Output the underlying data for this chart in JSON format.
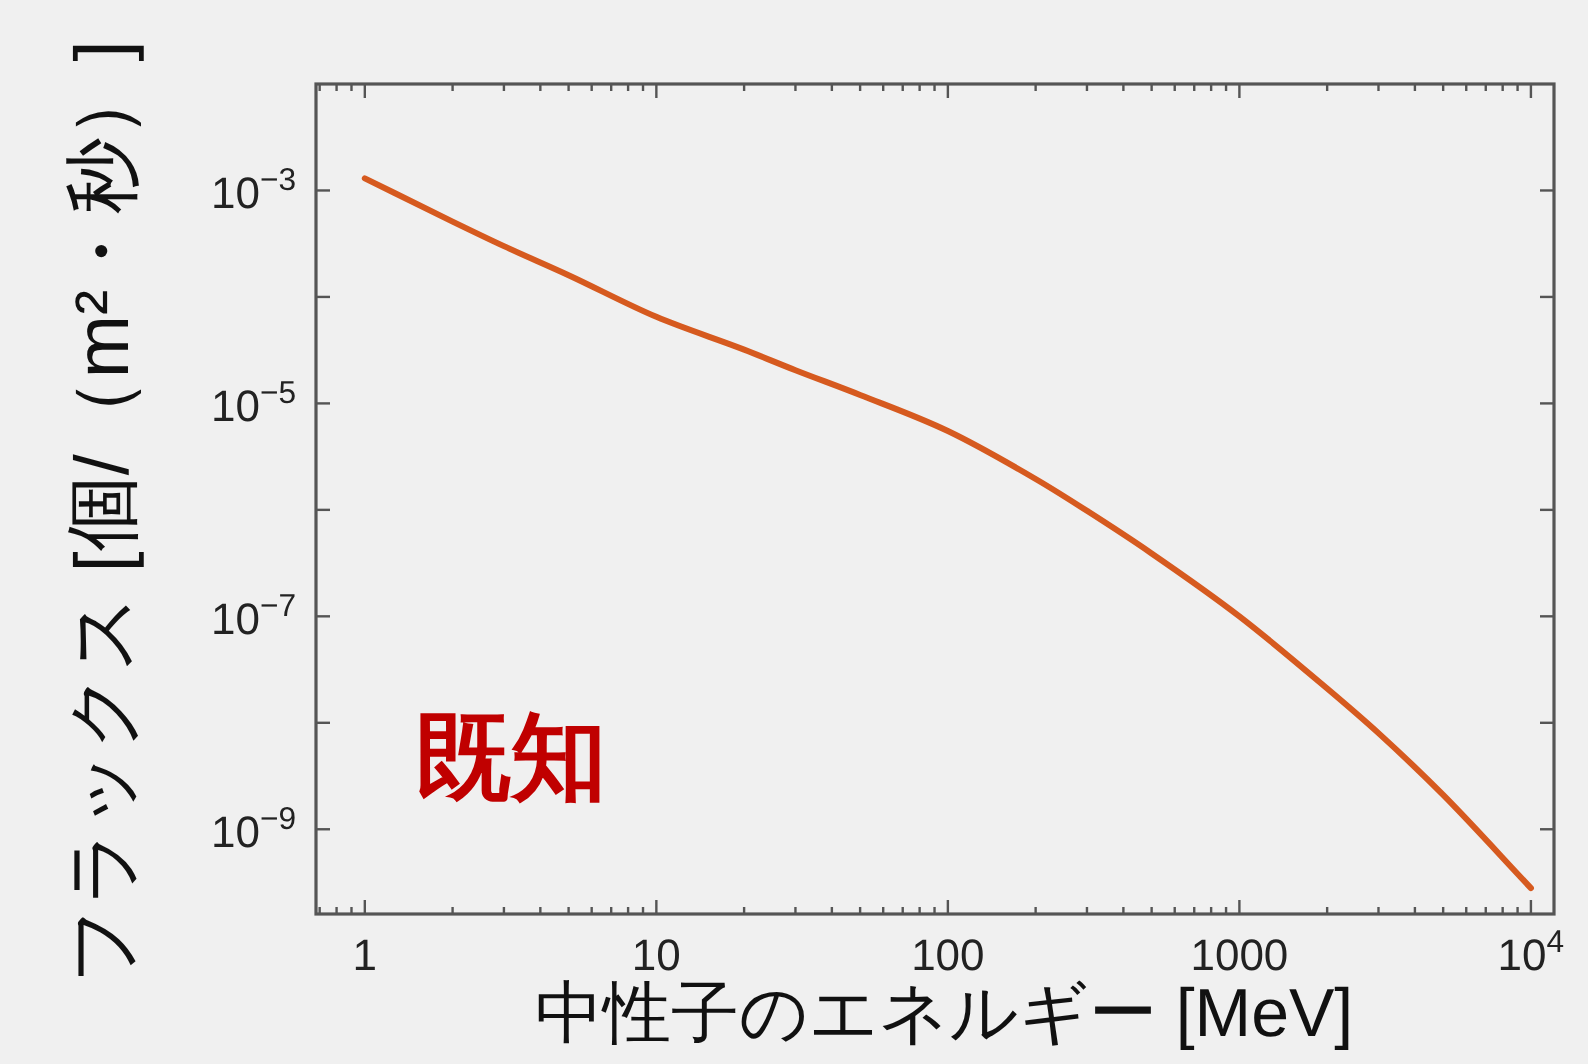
{
  "chart_data": {
    "type": "line",
    "xlabel": "中性子のエネルギー [MeV]",
    "ylabel": "フラックス [個/（m²・秒）]",
    "log": "xy",
    "xlim": [
      0.68,
      12000
    ],
    "ylim": [
      1.6e-10,
      0.01
    ],
    "xticks": [
      {
        "value": 0.7,
        "label": null
      },
      {
        "value": 0.8,
        "label": null
      },
      {
        "value": 0.9,
        "label": null
      },
      1,
      {
        "value": 2,
        "label": null
      },
      {
        "value": 3,
        "label": null
      },
      {
        "value": 4,
        "label": null
      },
      {
        "value": 5,
        "label": null
      },
      {
        "value": 6,
        "label": null
      },
      {
        "value": 7,
        "label": null
      },
      {
        "value": 8,
        "label": null
      },
      {
        "value": 9,
        "label": null
      },
      10,
      {
        "value": 20,
        "label": null
      },
      {
        "value": 30,
        "label": null
      },
      {
        "value": 40,
        "label": null
      },
      {
        "value": 50,
        "label": null
      },
      {
        "value": 60,
        "label": null
      },
      {
        "value": 70,
        "label": null
      },
      {
        "value": 80,
        "label": null
      },
      {
        "value": 90,
        "label": null
      },
      100,
      {
        "value": 200,
        "label": null
      },
      {
        "value": 300,
        "label": null
      },
      {
        "value": 400,
        "label": null
      },
      {
        "value": 500,
        "label": null
      },
      {
        "value": 600,
        "label": null
      },
      {
        "value": 700,
        "label": null
      },
      {
        "value": 800,
        "label": null
      },
      {
        "value": 900,
        "label": null
      },
      1000,
      {
        "value": 2000,
        "label": null
      },
      {
        "value": 3000,
        "label": null
      },
      {
        "value": 4000,
        "label": null
      },
      {
        "value": 5000,
        "label": null
      },
      {
        "value": 6000,
        "label": null
      },
      {
        "value": 7000,
        "label": null
      },
      {
        "value": 8000,
        "label": null
      },
      {
        "value": 9000,
        "label": null
      },
      {
        "value": 10000,
        "label": "10$^{4}$"
      }
    ],
    "yticks": [
      {
        "value": 0.001,
        "label": "10$^{−3}$"
      },
      {
        "value": 0.0001,
        "label": null
      },
      {
        "value": 1e-05,
        "label": "10$^{−5}$"
      },
      {
        "value": 1e-06,
        "label": null
      },
      {
        "value": 1e-07,
        "label": "10$^{−7}$"
      },
      {
        "value": 1e-08,
        "label": null
      },
      {
        "value": 1e-09,
        "label": "10$^{−9}$"
      }
    ],
    "x": [
      1,
      2,
      3,
      5,
      10,
      20,
      30,
      50,
      100,
      200,
      300,
      500,
      1000,
      2000,
      3000,
      5000,
      10000
    ],
    "series": [
      {
        "color": "#d65a1f",
        "values": [
          0.0013,
          0.00051,
          0.0003,
          0.00016,
          6.5e-05,
          3.2e-05,
          2.05e-05,
          1.2e-05,
          5.5e-06,
          1.95e-06,
          9.8e-07,
          3.9e-07,
          1e-07,
          2.1e-08,
          8e-09,
          2.1e-09,
          2.8e-10
        ]
      }
    ],
    "annotations": [
      "既知"
    ]
  }
}
